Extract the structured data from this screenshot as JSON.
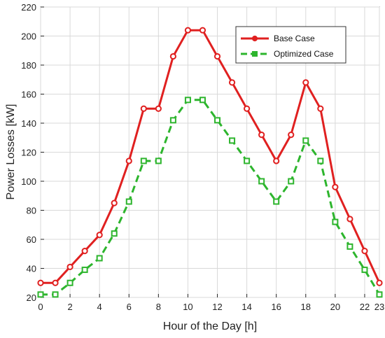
{
  "chart_data": {
    "type": "line",
    "xlabel": "Hour of the Day [h]",
    "ylabel": "Power Losses [kW]",
    "xlim": [
      0,
      23
    ],
    "ylim": [
      20,
      220
    ],
    "x_ticks": [
      0,
      2,
      4,
      6,
      8,
      10,
      12,
      14,
      16,
      18,
      20,
      22,
      23
    ],
    "y_ticks": [
      20,
      40,
      60,
      80,
      100,
      120,
      140,
      160,
      180,
      200,
      220
    ],
    "grid": true,
    "legend_position": "top-right",
    "x": [
      0,
      1,
      2,
      3,
      4,
      5,
      6,
      7,
      8,
      9,
      10,
      11,
      12,
      13,
      14,
      15,
      16,
      17,
      18,
      19,
      20,
      21,
      22,
      23
    ],
    "series": [
      {
        "name": "Base Case",
        "color": "#e02020",
        "marker": "circle",
        "line_style": "solid",
        "values": [
          30,
          30,
          41,
          52,
          63,
          85,
          114,
          150,
          150,
          186,
          204,
          204,
          186,
          168,
          150,
          132,
          114,
          132,
          168,
          150,
          96,
          74,
          52,
          30
        ]
      },
      {
        "name": "Optimized Case",
        "color": "#2db52d",
        "marker": "square",
        "line_style": "dashed",
        "values": [
          22,
          22,
          30,
          39,
          47,
          64,
          86,
          114,
          114,
          142,
          156,
          156,
          142,
          128,
          114,
          100,
          86,
          100,
          128,
          114,
          72,
          55,
          39,
          22
        ]
      }
    ]
  }
}
